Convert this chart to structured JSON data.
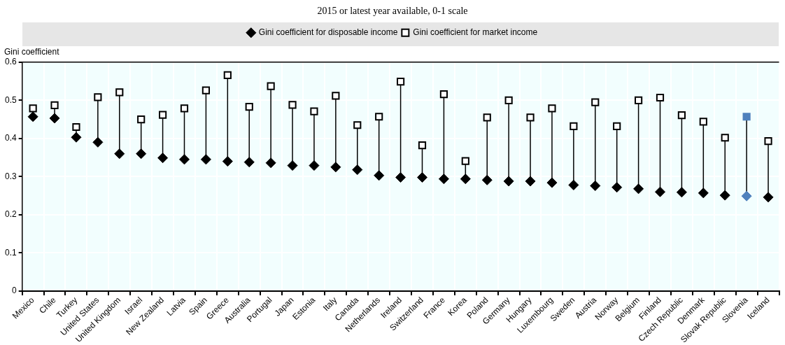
{
  "chart_data": {
    "type": "scatter",
    "title": "2015 or latest year available, 0-1 scale",
    "ylabel": "Gini coefficient",
    "categories": [
      "Mexico",
      "Chile",
      "Turkey",
      "United States",
      "United Kingdom",
      "Israel",
      "New Zealand",
      "Latvia",
      "Spain",
      "Greece",
      "Australia",
      "Portugal",
      "Japan",
      "Estonia",
      "Italy",
      "Canada",
      "Netherlands",
      "Ireland",
      "Switzerland",
      "France",
      "Korea",
      "Poland",
      "Germany",
      "Hungary",
      "Luxembourg",
      "Sweden",
      "Austria",
      "Norway",
      "Belgium",
      "Finland",
      "Czech Republic",
      "Denmark",
      "Slovak Republic",
      "Slovenia",
      "Iceland"
    ],
    "series": [
      {
        "name": "Gini coefficient for disposable income",
        "color": "#000000",
        "marker": "diamond",
        "colors": [
          "#000000",
          "#000000",
          "#000000",
          "#000000",
          "#000000",
          "#000000",
          "#000000",
          "#000000",
          "#000000",
          "#000000",
          "#000000",
          "#000000",
          "#000000",
          "#000000",
          "#000000",
          "#000000",
          "#000000",
          "#000000",
          "#000000",
          "#000000",
          "#000000",
          "#000000",
          "#000000",
          "#000000",
          "#000000",
          "#000000",
          "#000000",
          "#000000",
          "#000000",
          "#000000",
          "#000000",
          "#000000",
          "#000000",
          "#4f81bd",
          "#000000"
        ],
        "values": [
          0.457,
          0.453,
          0.403,
          0.39,
          0.36,
          0.36,
          0.349,
          0.345,
          0.345,
          0.34,
          0.338,
          0.336,
          0.329,
          0.329,
          0.325,
          0.318,
          0.303,
          0.298,
          0.298,
          0.294,
          0.294,
          0.291,
          0.288,
          0.288,
          0.284,
          0.278,
          0.276,
          0.272,
          0.268,
          0.26,
          0.259,
          0.257,
          0.251,
          0.249,
          0.246
        ]
      },
      {
        "name": "Gini coefficient for market income",
        "color": "#000000",
        "marker": "square",
        "colors": [
          "#000000",
          "#000000",
          "#000000",
          "#000000",
          "#000000",
          "#000000",
          "#000000",
          "#000000",
          "#000000",
          "#000000",
          "#000000",
          "#000000",
          "#000000",
          "#000000",
          "#000000",
          "#000000",
          "#000000",
          "#000000",
          "#000000",
          "#000000",
          "#000000",
          "#000000",
          "#000000",
          "#000000",
          "#000000",
          "#000000",
          "#000000",
          "#000000",
          "#000000",
          "#000000",
          "#000000",
          "#000000",
          "#000000",
          "#4f81bd",
          "#000000"
        ],
        "values": [
          0.479,
          0.487,
          0.43,
          0.508,
          0.521,
          0.45,
          0.462,
          0.479,
          0.526,
          0.566,
          0.483,
          0.537,
          0.488,
          0.471,
          0.512,
          0.435,
          0.457,
          0.549,
          0.382,
          0.516,
          0.341,
          0.455,
          0.5,
          0.455,
          0.479,
          0.432,
          0.495,
          0.432,
          0.5,
          0.507,
          0.461,
          0.444,
          0.402,
          0.457,
          0.393
        ]
      }
    ],
    "ylim": [
      0,
      0.6
    ],
    "yticks": [
      0,
      0.1,
      0.2,
      0.3,
      0.4,
      0.5,
      0.6
    ],
    "grid": true,
    "legend": "top"
  }
}
